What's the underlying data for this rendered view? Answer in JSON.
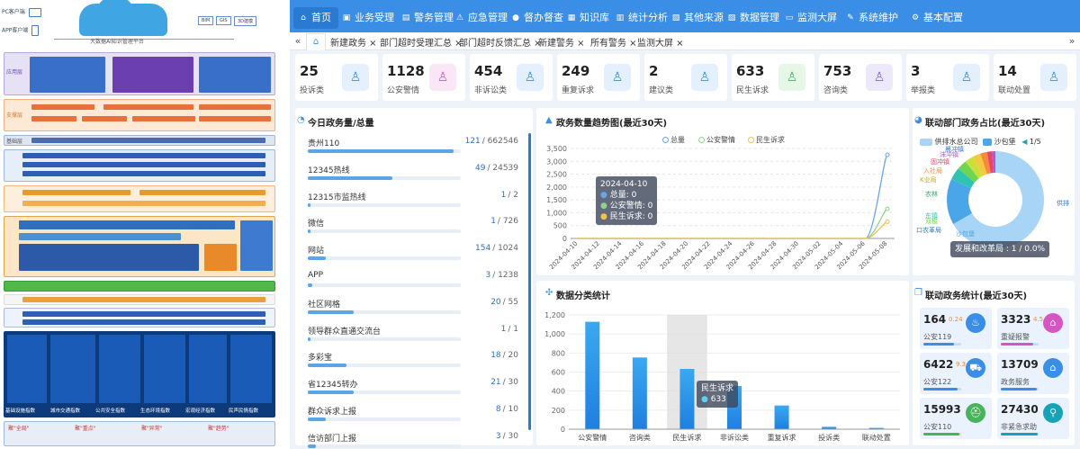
{
  "left_diagram": {
    "pc_client": "PC客户端",
    "app_client": "APP客户端",
    "platform_title": "大数据AI知识管理平台",
    "tech_badges": [
      "BIM",
      "GIS",
      "3D建模"
    ],
    "layers": [
      "应用层",
      "支撑层",
      "基础层"
    ],
    "bottom_labels": [
      "基础设施指数",
      "城市交通指数",
      "公共安全指数",
      "生态环境指数",
      "宏观经济指数",
      "民声民情指数"
    ],
    "bottom_notes": [
      "聚\"全局\"",
      "聚\"重点\"",
      "聚\"异常\"",
      "聚\"趋势\""
    ]
  },
  "nav": {
    "items": [
      {
        "label": "首页",
        "icon": "⌂"
      },
      {
        "label": "业务受理",
        "icon": "▣"
      },
      {
        "label": "警务管理",
        "icon": "▤"
      },
      {
        "label": "应急管理",
        "icon": "⚠"
      },
      {
        "label": "督办督查",
        "icon": "●"
      },
      {
        "label": "知识库",
        "icon": "▦"
      },
      {
        "label": "统计分析",
        "icon": "▥"
      },
      {
        "label": "其他来源",
        "icon": "▧"
      },
      {
        "label": "数据管理",
        "icon": "▨"
      },
      {
        "label": "监测大屏",
        "icon": "▭"
      },
      {
        "label": "系统维护",
        "icon": "✎"
      },
      {
        "label": "基本配置",
        "icon": "⚙"
      }
    ]
  },
  "tabs": {
    "prev": "«",
    "next": "»",
    "home": "⌂",
    "items": [
      "新建政务 ×",
      "部门超时受理汇总 ×",
      "部门超时反馈汇总 ×",
      "新建警务 ×",
      "所有警务 ×",
      "监测大屏 ×"
    ]
  },
  "stats": [
    {
      "num": "25",
      "label": "投诉类",
      "bg": "#e4f0fd",
      "color": "#3a8ee6",
      "icon": "♙"
    },
    {
      "num": "1128",
      "label": "公安警情",
      "bg": "#fae7f6",
      "color": "#d655c3",
      "icon": "♙"
    },
    {
      "num": "454",
      "label": "非诉讼类",
      "bg": "#e4f0fd",
      "color": "#3a8ee6",
      "icon": "♙"
    },
    {
      "num": "249",
      "label": "重复诉求",
      "bg": "#e4f0fd",
      "color": "#3a8ee6",
      "icon": "♙"
    },
    {
      "num": "2",
      "label": "建议类",
      "bg": "#e4f0fd",
      "color": "#3a8ee6",
      "icon": "♙"
    },
    {
      "num": "633",
      "label": "民生诉求",
      "bg": "#e6f7e8",
      "color": "#49b35c",
      "icon": "♙"
    },
    {
      "num": "753",
      "label": "咨询类",
      "bg": "#ede9fb",
      "color": "#7a64d8",
      "icon": "♙"
    },
    {
      "num": "3",
      "label": "举报类",
      "bg": "#e4f0fd",
      "color": "#3a8ee6",
      "icon": "♙"
    },
    {
      "num": "14",
      "label": "联动处置",
      "bg": "#e4f0fd",
      "color": "#3a8ee6",
      "icon": "♙"
    }
  ],
  "today": {
    "title": "今日政务量/总量",
    "rows": [
      {
        "name": "贵州110",
        "today": "121",
        "total": "/ 662546",
        "fraction": 0.95
      },
      {
        "name": "12345热线",
        "today": "49",
        "total": "/ 24539",
        "fraction": 0.55
      },
      {
        "name": "12315市监热线",
        "today": "1",
        "total": "/ 2",
        "fraction": 0.02
      },
      {
        "name": "微信",
        "today": "1",
        "total": "/ 726",
        "fraction": 0.02
      },
      {
        "name": "网站",
        "today": "154",
        "total": "/ 1024",
        "fraction": 0.12
      },
      {
        "name": "APP",
        "today": "3",
        "total": "/ 1238",
        "fraction": 0.03
      },
      {
        "name": "社区网格",
        "today": "20",
        "total": "/ 55",
        "fraction": 0.3
      },
      {
        "name": "领导群众直通交流台",
        "today": "1",
        "total": "/ 1",
        "fraction": 0.02
      },
      {
        "name": "多彩宝",
        "today": "18",
        "total": "/ 20",
        "fraction": 0.25
      },
      {
        "name": "省12345转办",
        "today": "21",
        "total": "/ 30",
        "fraction": 0.3
      },
      {
        "name": "群众诉求上报",
        "today": "8",
        "total": "/ 10",
        "fraction": 0.12
      },
      {
        "name": "信访部门上报",
        "today": "3",
        "total": "/ 30",
        "fraction": 0.05
      }
    ]
  },
  "trend": {
    "title": "政务数量趋势图(最近30天)",
    "legend": [
      "总量",
      "公安警情",
      "民生诉求"
    ],
    "tooltip": {
      "date": "2024-04-10",
      "lines": [
        "总量: 0",
        "公安警情: 0",
        "民生诉求: 0"
      ]
    }
  },
  "category": {
    "title": "数据分类统计",
    "tooltip": {
      "title": "民生诉求",
      "value": "633"
    }
  },
  "dept": {
    "title": "联动部门政务占比(最近30天)",
    "legend": [
      "供排水总公司",
      "沙包堡"
    ],
    "page": "1/5",
    "labels": [
      "供排",
      "农林",
      "东镇",
      "双梭",
      "K业局",
      "入社局",
      "固冲镇",
      "沫冲镇",
      "晨冲镇",
      "沙包堡",
      "口农革局"
    ],
    "tooltip": "发展和改革局 : 1 / 0.0%"
  },
  "linkage": {
    "title": "联动政务统计(最近30天)",
    "cards": [
      {
        "value": "164",
        "extra": "0.24",
        "label": "公安119",
        "progress": 0.8,
        "color": "#3a8ee6",
        "icon": "♨"
      },
      {
        "value": "3323",
        "extra": "4.5",
        "label": "重疑报警",
        "progress": 0.85,
        "color": "#d655c3",
        "icon": "⌂"
      },
      {
        "value": "6422",
        "extra": "9.3",
        "label": "公安122",
        "progress": 0.9,
        "color": "#3a8ee6",
        "icon": "⛟"
      },
      {
        "value": "13709",
        "extra": "",
        "label": "政务服务",
        "progress": 0.95,
        "color": "#3a8ee6",
        "icon": "⌂"
      },
      {
        "value": "15993",
        "extra": "",
        "label": "公安110",
        "progress": 0.95,
        "color": "#49b35c",
        "icon": "⛑"
      },
      {
        "value": "27430",
        "extra": "",
        "label": "非紧急求助",
        "progress": 0.98,
        "color": "#16a3b8",
        "icon": "⚲"
      }
    ]
  },
  "chart_data": [
    {
      "type": "line",
      "title": "政务数量趋势图(最近30天)",
      "x": [
        "2024-04-10",
        "2024-04-12",
        "2024-04-14",
        "2024-04-16",
        "2024-04-18",
        "2024-04-20",
        "2024-04-22",
        "2024-04-24",
        "2024-04-26",
        "2024-04-28",
        "2024-04-30",
        "2024-05-02",
        "2024-05-04",
        "2024-05-06",
        "2024-05-08"
      ],
      "ylim": [
        0,
        3500
      ],
      "yticks": [
        0,
        500,
        1000,
        1500,
        2000,
        2500,
        3000,
        3500
      ],
      "series": [
        {
          "name": "总量",
          "color": "#6aa6e3",
          "values": [
            0,
            0,
            0,
            0,
            0,
            0,
            0,
            0,
            0,
            0,
            0,
            0,
            0,
            0,
            3250
          ]
        },
        {
          "name": "公安警情",
          "color": "#8fd28f",
          "values": [
            0,
            0,
            0,
            0,
            0,
            0,
            0,
            0,
            0,
            0,
            0,
            0,
            0,
            0,
            1150
          ]
        },
        {
          "name": "民生诉求",
          "color": "#f0c24a",
          "values": [
            0,
            0,
            0,
            0,
            0,
            0,
            0,
            0,
            0,
            0,
            0,
            0,
            0,
            0,
            650
          ]
        }
      ]
    },
    {
      "type": "bar",
      "title": "数据分类统计",
      "categories": [
        "公安警情",
        "咨询类",
        "民生诉求",
        "非诉讼类",
        "重复诉求",
        "投诉类",
        "联动处置"
      ],
      "values": [
        1128,
        753,
        633,
        454,
        249,
        25,
        14
      ],
      "ylim": [
        0,
        1200
      ],
      "yticks": [
        0,
        200,
        400,
        600,
        800,
        1000,
        1200
      ]
    }
  ]
}
